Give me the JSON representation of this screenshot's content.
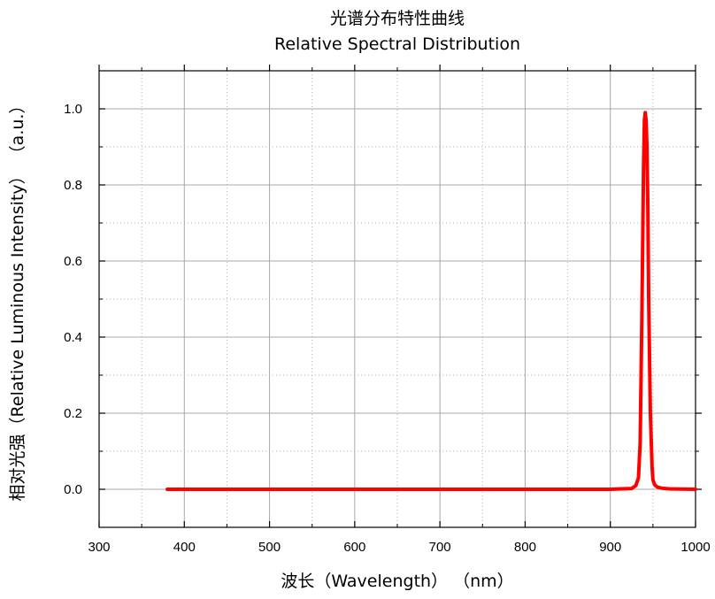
{
  "chart_data": {
    "type": "line",
    "title": "光谱分布特性曲线",
    "subtitle": "Relative Spectral Distribution",
    "xlabel": "波长（Wavelength） （nm）",
    "ylabel": "相对光强（Relative Luminous Intensity） （a.u.）",
    "xlim": [
      300,
      1000
    ],
    "ylim": [
      -0.1,
      1.1
    ],
    "xticks": [
      300,
      400,
      500,
      600,
      700,
      800,
      900,
      1000
    ],
    "yticks": [
      0.0,
      0.2,
      0.4,
      0.6,
      0.8,
      1.0
    ],
    "xtick_labels": [
      "300",
      "400",
      "500",
      "600",
      "700",
      "800",
      "900",
      "1000"
    ],
    "ytick_labels": [
      "0.0",
      "0.2",
      "0.4",
      "0.6",
      "0.8",
      "1.0"
    ],
    "grid": true,
    "series": [
      {
        "color": "#ff0000",
        "x": [
          380,
          500,
          600,
          700,
          800,
          900,
          925,
          930,
          933,
          935,
          937,
          939,
          940,
          941,
          942,
          943,
          944,
          945,
          947,
          949,
          950,
          952,
          955,
          960,
          970,
          1000
        ],
        "y": [
          0.0,
          0.0,
          0.0,
          0.0,
          0.0,
          0.0,
          0.002,
          0.01,
          0.03,
          0.12,
          0.45,
          0.85,
          0.97,
          0.99,
          0.97,
          0.9,
          0.75,
          0.5,
          0.2,
          0.06,
          0.025,
          0.012,
          0.006,
          0.003,
          0.001,
          0.0
        ]
      }
    ]
  }
}
